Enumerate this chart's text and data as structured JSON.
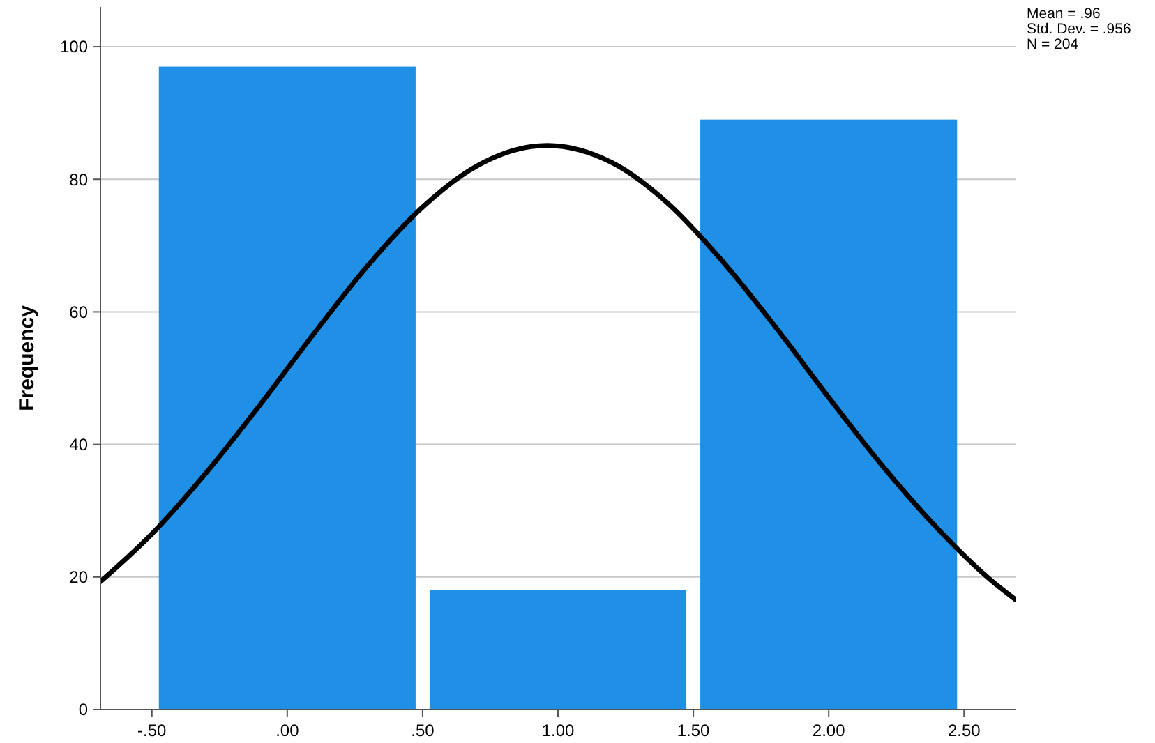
{
  "chart_data": {
    "type": "histogram",
    "ylabel": "Frequency",
    "bins": [
      -0.5,
      0.5,
      1.5,
      2.5
    ],
    "values": [
      97,
      18,
      89
    ],
    "color": "#1f90e6",
    "series": [
      {
        "type": "line",
        "color": "#000000",
        "x": [
          -0.69,
          -0.5,
          -0.3,
          -0.1,
          0.1,
          0.3,
          0.5,
          0.7,
          0.96,
          1.2,
          1.4,
          1.6,
          1.8,
          2.0,
          2.2,
          2.4,
          2.6,
          2.69
        ],
        "values": [
          19.3,
          26.5,
          35.7,
          46.0,
          56.8,
          67.1,
          75.8,
          82.0,
          85.1,
          82.5,
          76.6,
          68.0,
          57.9,
          47.1,
          36.7,
          27.4,
          19.5,
          16.6
        ]
      }
    ],
    "xlim": [
      -0.69,
      2.69
    ],
    "ylim": [
      0,
      106
    ],
    "xticks": [
      {
        "value": -0.5,
        "label": "-.50"
      },
      {
        "value": 0,
        "label": ".00"
      },
      {
        "value": 0.5,
        "label": ".50"
      },
      {
        "value": 1,
        "label": "1.00"
      },
      {
        "value": 1.5,
        "label": "1.50"
      },
      {
        "value": 2,
        "label": "2.00"
      },
      {
        "value": 2.5,
        "label": "2.50"
      }
    ],
    "yticks": [
      0,
      20,
      40,
      60,
      80,
      100
    ],
    "grid": "y",
    "annotations": [
      "Mean = .96",
      "Std. Dev. = .956",
      "N = 204"
    ]
  }
}
